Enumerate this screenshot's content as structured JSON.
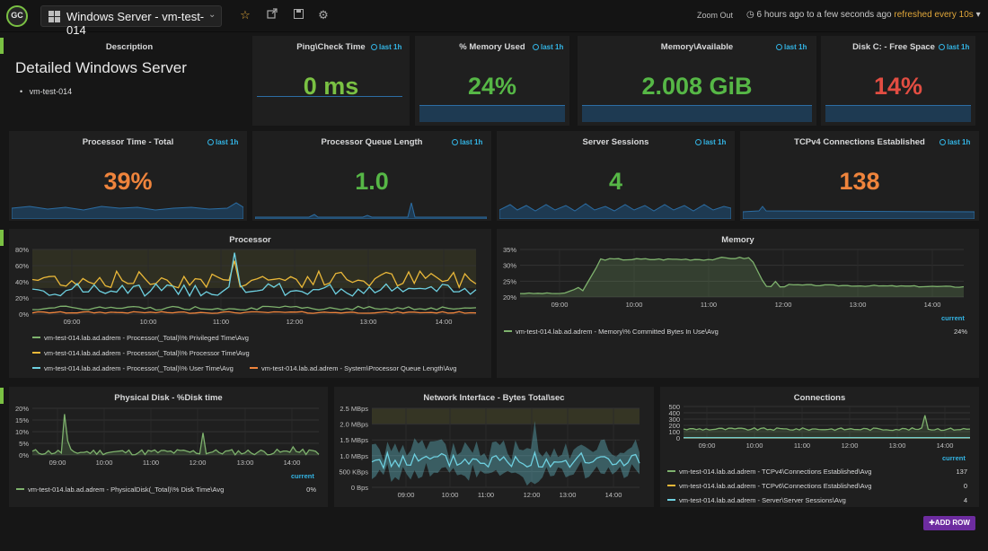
{
  "topbar": {
    "logo_text": "GC",
    "dashboard_title": "Windows Server - vm-test-014",
    "zoom_out": "Zoom Out",
    "time_range": "6 hours ago to a few seconds ago",
    "refresh": "refreshed every 10s"
  },
  "description": {
    "title": "Description",
    "heading": "Detailed Windows Server",
    "items": [
      "vm-test-014"
    ]
  },
  "last_label": "last 1h",
  "stats": {
    "ping": {
      "title": "Ping\\Check Time",
      "value": "0 ms",
      "color": "#7ac143"
    },
    "memory_used": {
      "title": "% Memory Used",
      "value": "24%",
      "color": "#56b746"
    },
    "memory_available": {
      "title": "Memory\\Available",
      "value": "2.008 GiB",
      "color": "#56b746"
    },
    "disk_free": {
      "title": "Disk C: - Free Space",
      "value": "14%",
      "color": "#e24d42"
    },
    "processor_time": {
      "title": "Processor Time - Total",
      "value": "39%",
      "color": "#ef843c"
    },
    "queue_length": {
      "title": "Processor Queue Length",
      "value": "1.0",
      "color": "#56b746"
    },
    "server_sessions": {
      "title": "Server Sessions",
      "value": "4",
      "color": "#56b746"
    },
    "tcp_connections": {
      "title": "TCPv4 Connections Established",
      "value": "138",
      "color": "#ef843c"
    }
  },
  "processor": {
    "title": "Processor",
    "y_ticks": [
      "80%",
      "60%",
      "40%",
      "20%",
      "0%"
    ],
    "x_ticks": [
      "09:00",
      "10:00",
      "11:00",
      "12:00",
      "13:00",
      "14:00"
    ],
    "legend": [
      {
        "label": "vm-test-014.lab.ad.adrem - Processor(_Total)\\% Privileged Time\\Avg",
        "color": "#7eb26d"
      },
      {
        "label": "vm-test-014.lab.ad.adrem - Processor(_Total)\\% Processor Time\\Avg",
        "color": "#eab839"
      },
      {
        "label": "vm-test-014.lab.ad.adrem - Processor(_Total)\\% User Time\\Avg",
        "color": "#6ed0e0"
      },
      {
        "label": "vm-test-014.lab.ad.adrem - System\\Processor Queue Length\\Avg",
        "color": "#ef843c"
      }
    ]
  },
  "memory": {
    "title": "Memory",
    "y_ticks": [
      "35%",
      "30%",
      "25%",
      "20%"
    ],
    "x_ticks": [
      "09:00",
      "10:00",
      "11:00",
      "12:00",
      "13:00",
      "14:00"
    ],
    "current_label": "current",
    "legend": [
      {
        "label": "vm-test-014.lab.ad.adrem - Memory\\% Committed Bytes In Use\\Avg",
        "color": "#7eb26d",
        "current": "24%"
      }
    ]
  },
  "disk": {
    "title": "Physical Disk - %Disk time",
    "y_ticks": [
      "20%",
      "15%",
      "10%",
      "5%",
      "0%"
    ],
    "x_ticks": [
      "09:00",
      "10:00",
      "11:00",
      "12:00",
      "13:00",
      "14:00"
    ],
    "current_label": "current",
    "legend": [
      {
        "label": "vm-test-014.lab.ad.adrem - PhysicalDisk(_Total)\\% Disk Time\\Avg",
        "color": "#7eb26d",
        "current": "0%"
      }
    ]
  },
  "network": {
    "title": "Network Interface - Bytes Total\\sec",
    "y_ticks": [
      "2.5 MBps",
      "2.0 MBps",
      "1.5 MBps",
      "1.0 MBps",
      "500 KBps",
      "0 Bps"
    ],
    "x_ticks": [
      "09:00",
      "10:00",
      "11:00",
      "12:00",
      "13:00",
      "14:00"
    ]
  },
  "connections": {
    "title": "Connections",
    "y_ticks": [
      "500",
      "400",
      "300",
      "200",
      "100",
      "0"
    ],
    "x_ticks": [
      "09:00",
      "10:00",
      "11:00",
      "12:00",
      "13:00",
      "14:00"
    ],
    "current_label": "current",
    "legend": [
      {
        "label": "vm-test-014.lab.ad.adrem - TCPv4\\Connections Established\\Avg",
        "color": "#7eb26d",
        "current": "137"
      },
      {
        "label": "vm-test-014.lab.ad.adrem - TCPv6\\Connections Established\\Avg",
        "color": "#eab839",
        "current": "0"
      },
      {
        "label": "vm-test-014.lab.ad.adrem - Server\\Server Sessions\\Avg",
        "color": "#6ed0e0",
        "current": "4"
      }
    ]
  },
  "add_row": "ADD ROW"
}
